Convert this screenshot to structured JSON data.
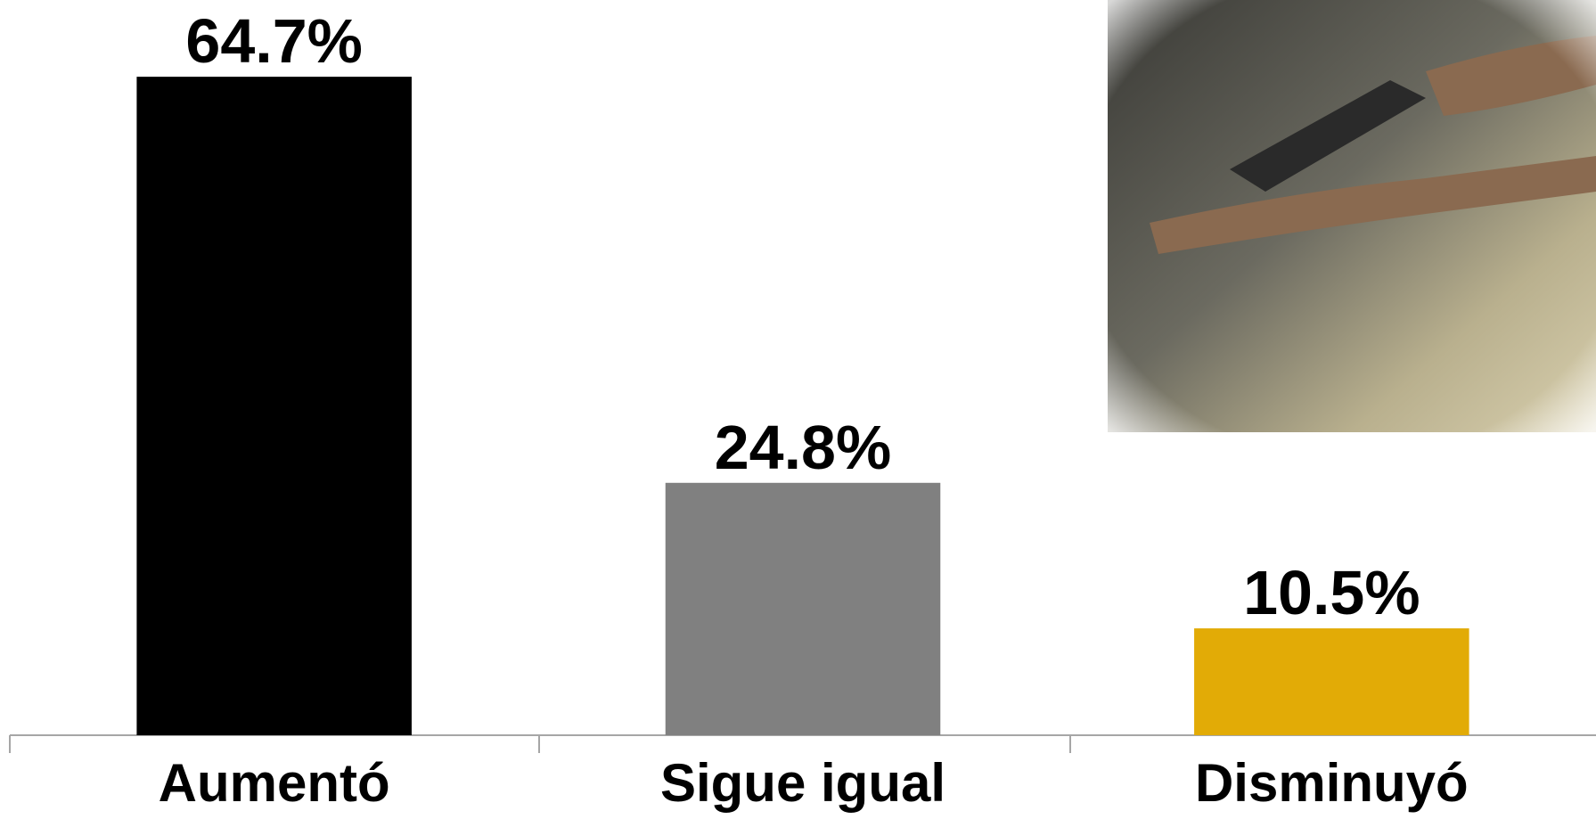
{
  "chart_data": {
    "type": "bar",
    "categories": [
      "Aumentó",
      "Sigue igual",
      "Disminuyó"
    ],
    "values": [
      64.7,
      24.8,
      10.5
    ],
    "value_labels": [
      "64.7%",
      "24.8%",
      "10.5%"
    ],
    "colors": [
      "#000000",
      "#808080",
      "#e2ab06"
    ]
  }
}
